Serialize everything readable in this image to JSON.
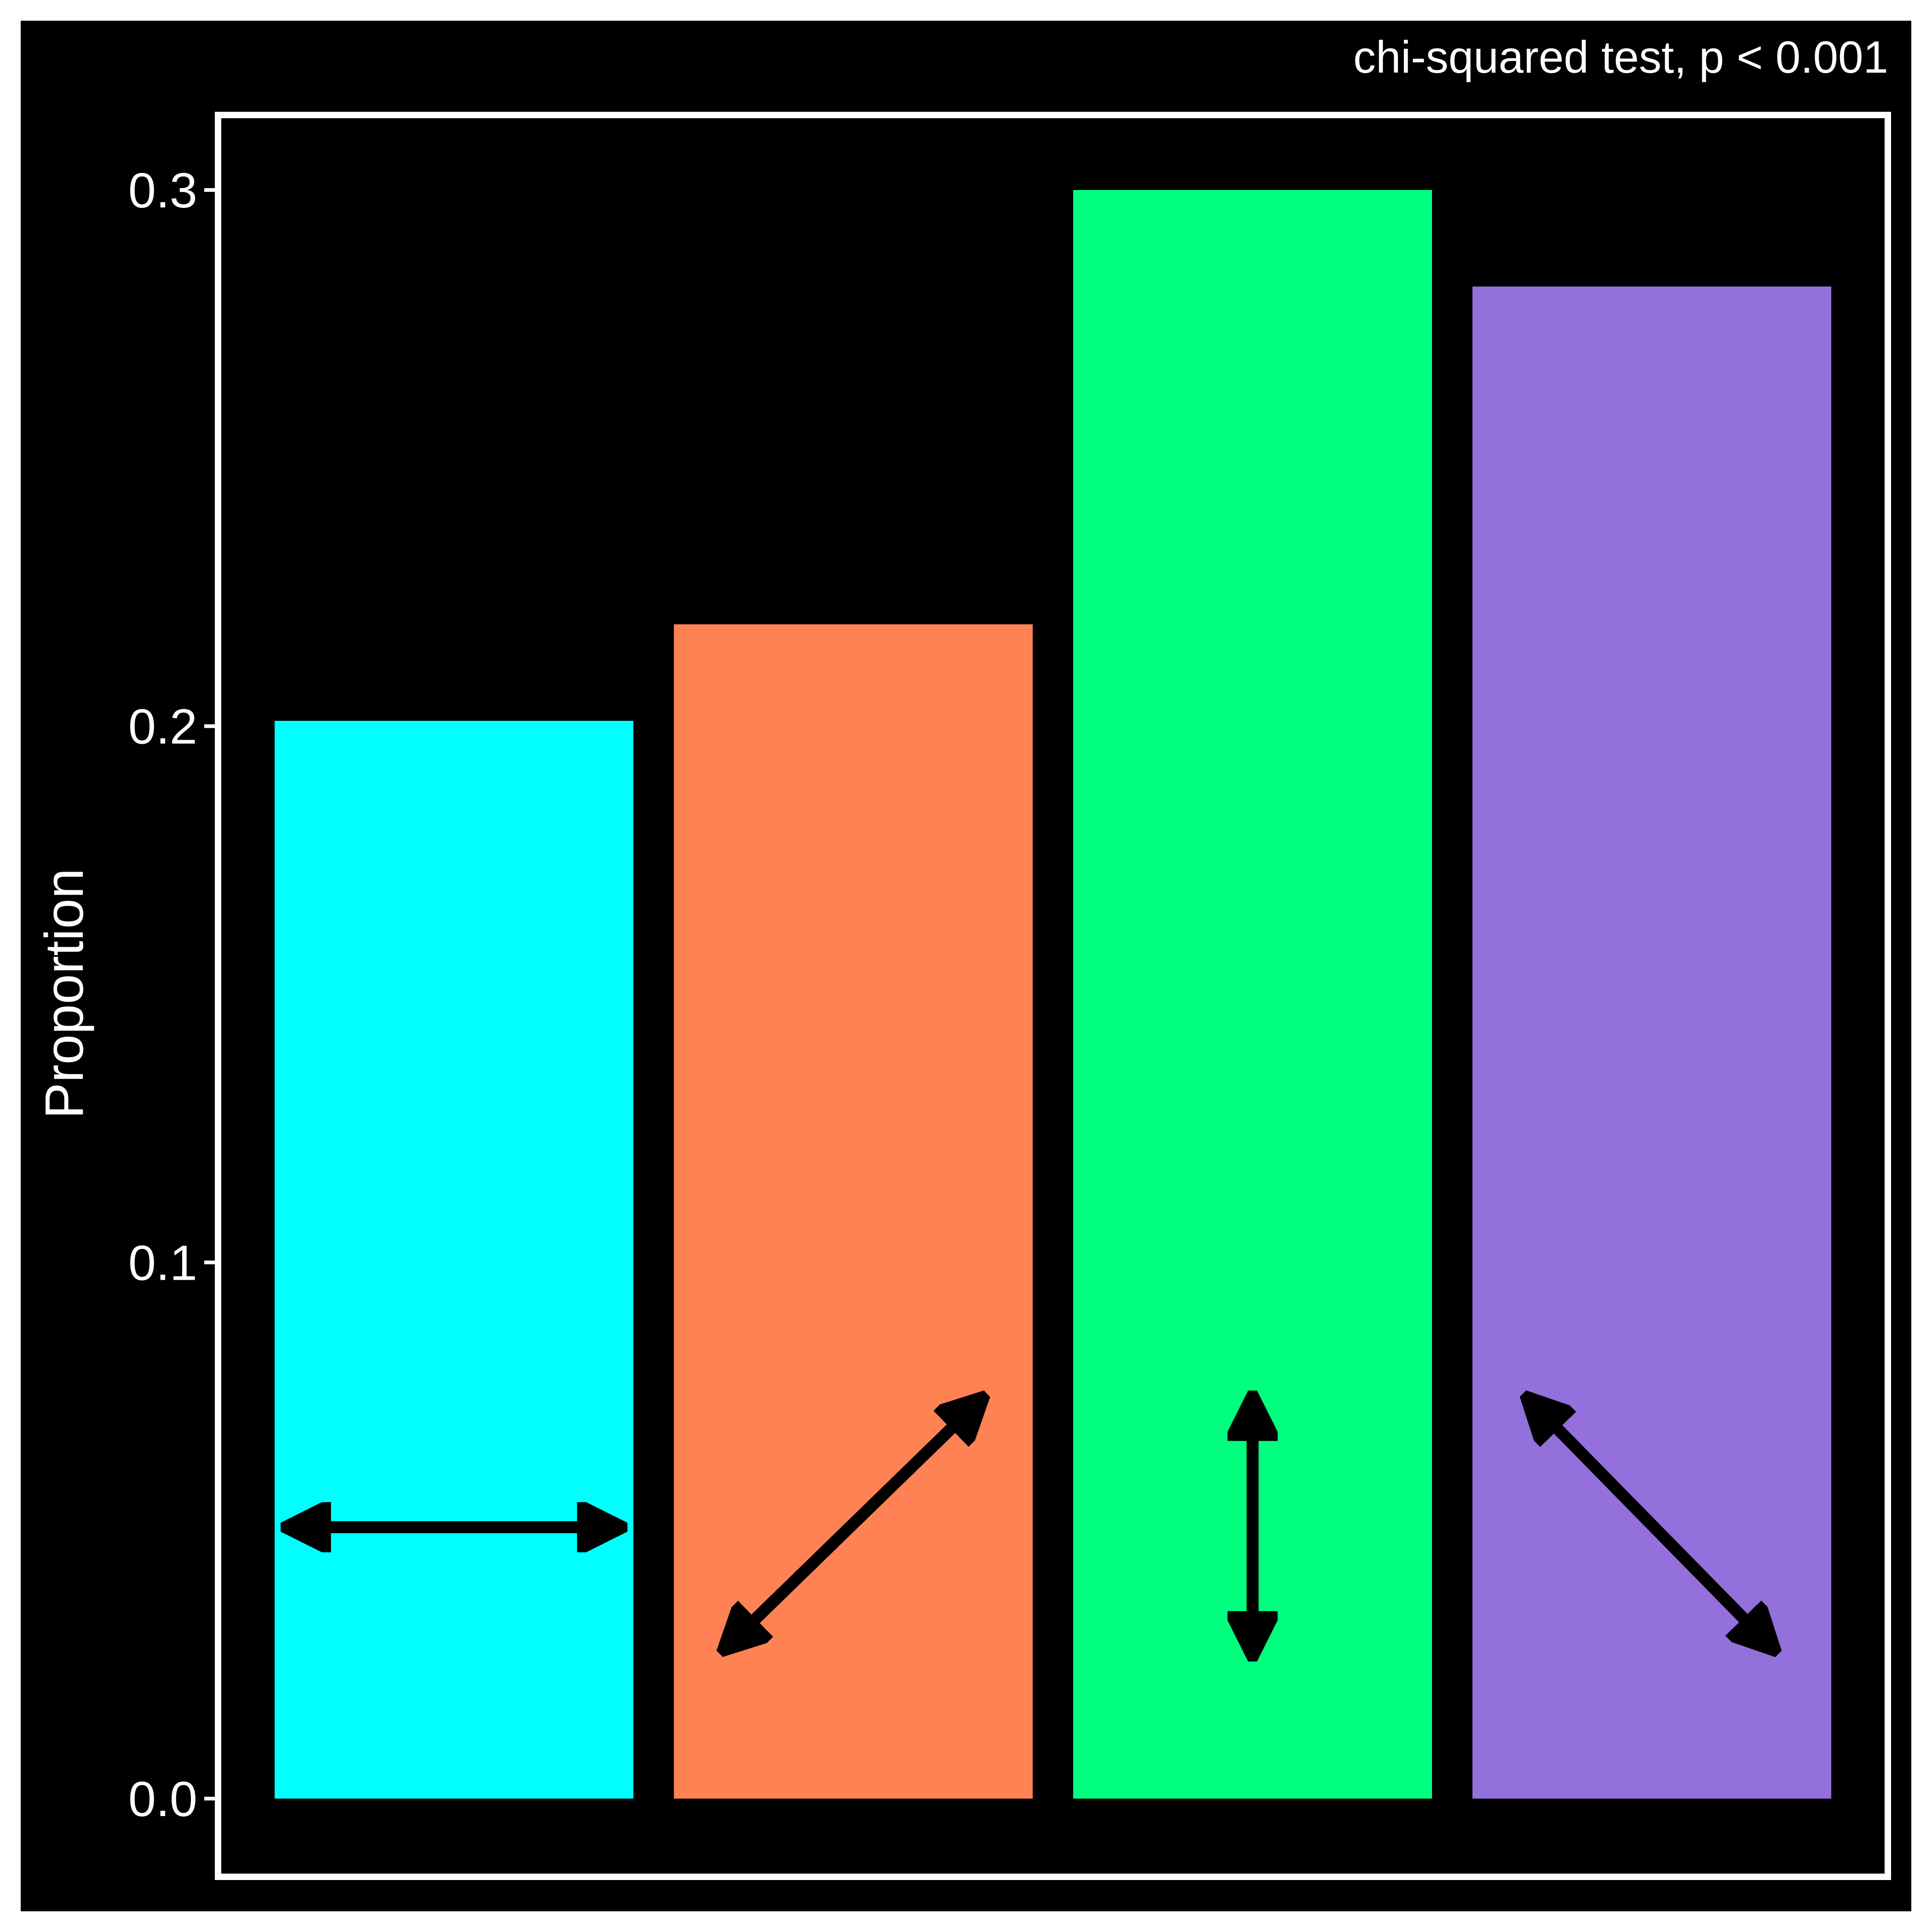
{
  "chart_data": {
    "type": "bar",
    "annotation": "chi-squared test, p < 0.001",
    "ylabel": "Proportion",
    "xlabel": "",
    "ylim": [
      0,
      0.325
    ],
    "yticks": [
      "0.0",
      "0.1",
      "0.2",
      "0.3"
    ],
    "ytick_values": [
      0,
      0.1,
      0.2,
      0.3
    ],
    "grid": false,
    "legend": "none",
    "values": [
      0.201,
      0.219,
      0.3,
      0.282
    ],
    "bar_colors": [
      "#00FFFF",
      "#FF8255",
      "#00FF7F",
      "#9370DB"
    ],
    "bar_icons": [
      "horizontal-double-arrow-icon",
      "diagonal-up-double-arrow-icon",
      "vertical-double-arrow-icon",
      "diagonal-down-double-arrow-icon"
    ],
    "background_color": "#000000",
    "frame_color": "#FFFFFF"
  }
}
